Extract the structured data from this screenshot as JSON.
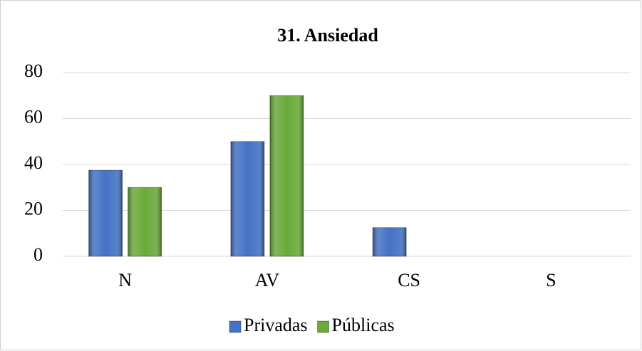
{
  "chart_data": {
    "type": "bar",
    "title": "31. Ansiedad",
    "categories": [
      "N",
      "AV",
      "CS",
      "S"
    ],
    "series": [
      {
        "name": "Privadas",
        "color": "#4472c4",
        "values": [
          37.5,
          50,
          12.5,
          0
        ]
      },
      {
        "name": "Públicas",
        "color": "#6aaa3a",
        "values": [
          30,
          70,
          0,
          0
        ]
      }
    ],
    "ylim": [
      0,
      80
    ],
    "yticks": [
      0,
      20,
      40,
      60,
      80
    ],
    "grid": true,
    "legend": "bottom"
  }
}
